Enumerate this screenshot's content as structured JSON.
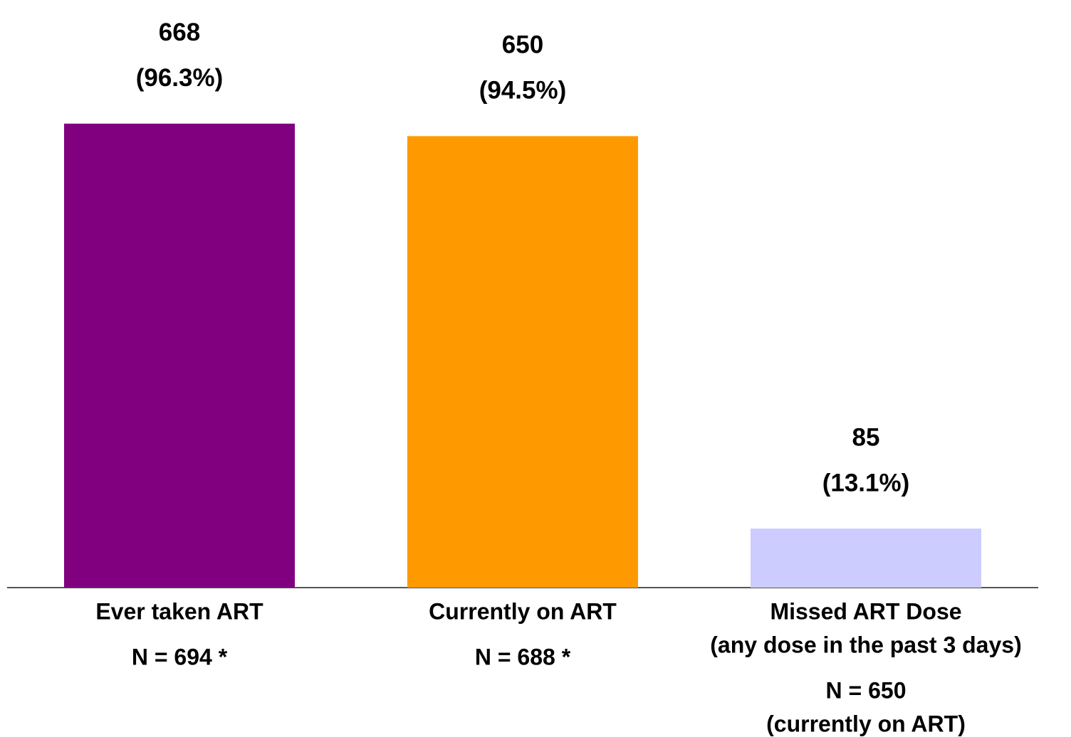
{
  "chart_data": {
    "type": "bar",
    "categories": [
      [
        "Ever taken ART"
      ],
      [
        "Currently on ART"
      ],
      [
        "Missed ART Dose",
        "(any dose in the past 3 days)"
      ]
    ],
    "values": [
      668,
      650,
      85
    ],
    "percent_labels": [
      "(96.3%)",
      "(94.5%)",
      "(13.1%)"
    ],
    "sample_sizes": [
      [
        "N = 694 *"
      ],
      [
        "N = 688 *"
      ],
      [
        "N = 650",
        "(currently on ART)"
      ]
    ],
    "colors": [
      "#800080",
      "#ff9900",
      "#ccccff"
    ],
    "ylim": [
      0,
      846
    ]
  }
}
